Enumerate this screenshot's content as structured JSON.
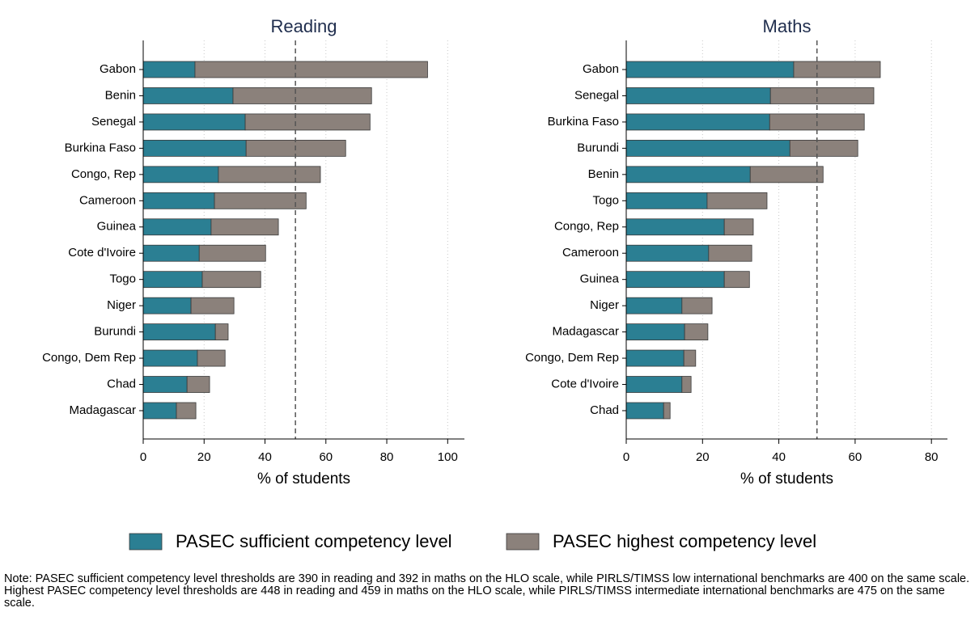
{
  "chart_data": [
    {
      "type": "bar",
      "orientation": "horizontal",
      "stacked": true,
      "title": "Reading",
      "x_label": "% of students",
      "categories": [
        "Gabon",
        "Benin",
        "Senegal",
        "Burkina Faso",
        "Congo, Rep",
        "Cameroon",
        "Guinea",
        "Cote d'Ivoire",
        "Togo",
        "Niger",
        "Burundi",
        "Congo, Dem Rep",
        "Chad",
        "Madagascar"
      ],
      "series": [
        {
          "name": "PASEC sufficient competency level",
          "color": "#2b7f93",
          "values": [
            17.0,
            29.5,
            33.5,
            33.8,
            24.7,
            23.4,
            22.3,
            18.4,
            19.4,
            15.7,
            23.7,
            17.8,
            14.4,
            10.9
          ]
        },
        {
          "name": "PASEC highest competency level",
          "color": "#8b817b",
          "values": [
            76.4,
            45.5,
            41.0,
            32.7,
            33.5,
            30.1,
            22.1,
            21.8,
            19.2,
            14.1,
            4.2,
            9.1,
            7.4,
            6.4
          ]
        }
      ],
      "xlim": [
        0,
        105.5
      ],
      "xticks": [
        0,
        20,
        40,
        60,
        80,
        100
      ],
      "reference_line": 50,
      "grid": true
    },
    {
      "type": "bar",
      "orientation": "horizontal",
      "stacked": true,
      "title": "Maths",
      "x_label": "% of students",
      "categories": [
        "Gabon",
        "Senegal",
        "Burkina Faso",
        "Burundi",
        "Benin",
        "Togo",
        "Congo, Rep",
        "Cameroon",
        "Guinea",
        "Niger",
        "Madagascar",
        "Congo, Dem Rep",
        "Cote d'Ivoire",
        "Chad"
      ],
      "series": [
        {
          "color": "#2b7f93",
          "values": [
            43.9,
            37.8,
            37.6,
            42.9,
            32.5,
            21.2,
            25.7,
            21.6,
            25.7,
            14.6,
            15.3,
            15.1,
            14.6,
            9.8
          ]
        },
        {
          "color": "#8b817b",
          "values": [
            22.7,
            27.1,
            24.8,
            17.8,
            19.1,
            15.7,
            7.6,
            11.3,
            6.6,
            7.9,
            6.1,
            3.1,
            2.4,
            1.7
          ]
        }
      ],
      "xlim": [
        0,
        84.2
      ],
      "xticks": [
        0,
        20,
        40,
        60,
        80
      ],
      "reference_line": 50,
      "grid": true
    }
  ],
  "note": [
    "Note: PASEC sufficient competency level thresholds are 390 in reading and 392 in maths on the HLO scale, while PIRLS/TIMSS low international benchmarks are 400 on the same scale.",
    "Highest PASEC competency level thresholds are 448 in reading and 459 in maths on the HLO scale, while PIRLS/TIMSS intermediate international benchmarks are 475 on the same scale."
  ]
}
